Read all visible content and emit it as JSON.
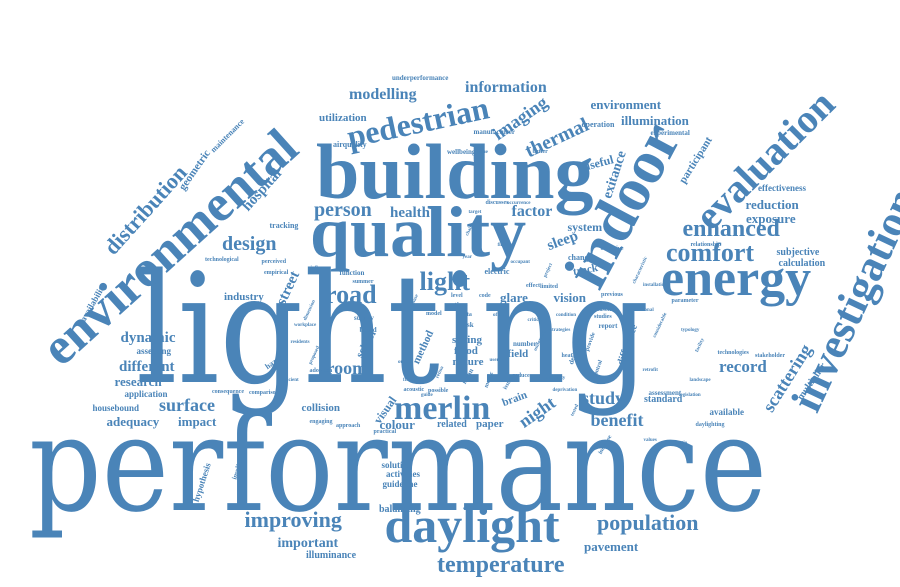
{
  "word_cloud": {
    "color": "#4a84b8",
    "words": [
      {
        "text": "lighting",
        "weight": 100
      },
      {
        "text": "performance",
        "weight": 95
      },
      {
        "text": "building",
        "weight": 70
      },
      {
        "text": "quality",
        "weight": 62
      },
      {
        "text": "environmental",
        "weight": 60
      },
      {
        "text": "indoor",
        "weight": 55
      },
      {
        "text": "daylight",
        "weight": 48
      },
      {
        "text": "energy",
        "weight": 45
      },
      {
        "text": "investigation",
        "weight": 44
      },
      {
        "text": "evaluation",
        "weight": 40
      },
      {
        "text": "pedestrian",
        "weight": 32
      },
      {
        "text": "merlin",
        "weight": 30
      },
      {
        "text": "light",
        "weight": 28
      },
      {
        "text": "road",
        "weight": 26
      },
      {
        "text": "comfort",
        "weight": 26
      },
      {
        "text": "enhanced",
        "weight": 24
      },
      {
        "text": "temperature",
        "weight": 24
      },
      {
        "text": "population",
        "weight": 24
      },
      {
        "text": "improving",
        "weight": 22
      },
      {
        "text": "distribution",
        "weight": 22
      },
      {
        "text": "person",
        "weight": 20
      },
      {
        "text": "design",
        "weight": 20
      },
      {
        "text": "thermal",
        "weight": 20
      },
      {
        "text": "imaging",
        "weight": 18
      },
      {
        "text": "surface",
        "weight": 18
      },
      {
        "text": "room",
        "weight": 18
      },
      {
        "text": "study",
        "weight": 18
      },
      {
        "text": "night",
        "weight": 18
      },
      {
        "text": "scattering",
        "weight": 18
      },
      {
        "text": "benefit",
        "weight": 18
      },
      {
        "text": "record",
        "weight": 17
      },
      {
        "text": "modelling",
        "weight": 16
      },
      {
        "text": "information",
        "weight": 16
      },
      {
        "text": "factor",
        "weight": 16
      },
      {
        "text": "health",
        "weight": 16
      },
      {
        "text": "sleep",
        "weight": 16
      },
      {
        "text": "street",
        "weight": 16
      },
      {
        "text": "hospital",
        "weight": 16
      },
      {
        "text": "different",
        "weight": 15
      },
      {
        "text": "dynamic",
        "weight": 15
      },
      {
        "text": "exitance",
        "weight": 14
      },
      {
        "text": "reduction",
        "weight": 14
      },
      {
        "text": "exposure",
        "weight": 14
      },
      {
        "text": "environment",
        "weight": 14
      },
      {
        "text": "illumination",
        "weight": 14
      },
      {
        "text": "pavement",
        "weight": 14
      },
      {
        "text": "important",
        "weight": 14
      },
      {
        "text": "visual",
        "weight": 13
      },
      {
        "text": "colour",
        "weight": 13
      },
      {
        "text": "glare",
        "weight": 13
      },
      {
        "text": "vision",
        "weight": 13
      },
      {
        "text": "impact",
        "weight": 13
      },
      {
        "text": "adequacy",
        "weight": 13
      },
      {
        "text": "research",
        "weight": 13
      },
      {
        "text": "utilization",
        "weight": 12
      },
      {
        "text": "geometric",
        "weight": 12
      },
      {
        "text": "participant",
        "weight": 12
      },
      {
        "text": "useful",
        "weight": 12
      },
      {
        "text": "system",
        "weight": 12
      },
      {
        "text": "subjective",
        "weight": 11
      },
      {
        "text": "calculation",
        "weight": 11
      },
      {
        "text": "multiplier",
        "weight": 11
      },
      {
        "text": "industry",
        "weight": 11
      },
      {
        "text": "collision",
        "weight": 11
      },
      {
        "text": "paper",
        "weight": 11
      },
      {
        "text": "related",
        "weight": 10
      },
      {
        "text": "balancing",
        "weight": 10
      },
      {
        "text": "illuminance",
        "weight": 10
      },
      {
        "text": "track",
        "weight": 10
      },
      {
        "text": "nature",
        "weight": 10
      },
      {
        "text": "field",
        "weight": 10
      },
      {
        "text": "saving",
        "weight": 10
      },
      {
        "text": "flood",
        "weight": 10
      },
      {
        "text": "method",
        "weight": 10
      },
      {
        "text": "school",
        "weight": 10
      },
      {
        "text": "brain",
        "weight": 10
      },
      {
        "text": "standard",
        "weight": 10
      },
      {
        "text": "difference",
        "weight": 10
      },
      {
        "text": "maintenance",
        "weight": 9
      },
      {
        "text": "availability",
        "weight": 9
      },
      {
        "text": "assessing",
        "weight": 9
      },
      {
        "text": "application",
        "weight": 9
      },
      {
        "text": "housebound",
        "weight": 9
      },
      {
        "text": "hypothesis",
        "weight": 9
      },
      {
        "text": "solution",
        "weight": 9
      },
      {
        "text": "activities",
        "weight": 9
      },
      {
        "text": "guideline",
        "weight": 9
      },
      {
        "text": "effectiveness",
        "weight": 9
      },
      {
        "text": "available",
        "weight": 9
      },
      {
        "text": "assessment",
        "weight": 8
      },
      {
        "text": "airquality",
        "weight": 8
      },
      {
        "text": "operation",
        "weight": 8
      },
      {
        "text": "experimental",
        "weight": 8
      },
      {
        "text": "underperformance",
        "weight": 8
      },
      {
        "text": "manufacturer",
        "weight": 8
      },
      {
        "text": "wellbeing",
        "weight": 8
      },
      {
        "text": "change",
        "weight": 8
      },
      {
        "text": "electric",
        "weight": 8
      },
      {
        "text": "tracking",
        "weight": 8
      },
      {
        "text": "hazard",
        "weight": 8
      },
      {
        "text": "relationship",
        "weight": 7
      },
      {
        "text": "stakeholder",
        "weight": 7
      },
      {
        "text": "parameter",
        "weight": 7
      },
      {
        "text": "technologies",
        "weight": 7
      },
      {
        "text": "technological",
        "weight": 7
      },
      {
        "text": "consequence",
        "weight": 7
      },
      {
        "text": "implication",
        "weight": 7
      },
      {
        "text": "daylighting",
        "weight": 7
      },
      {
        "text": "increase",
        "weight": 7
      },
      {
        "text": "number",
        "weight": 7
      },
      {
        "text": "report",
        "weight": 7
      },
      {
        "text": "supply",
        "weight": 7
      },
      {
        "text": "based",
        "weight": 7
      },
      {
        "text": "time",
        "weight": 7
      },
      {
        "text": "level",
        "weight": 7
      },
      {
        "text": "code",
        "weight": 7
      },
      {
        "text": "effect",
        "weight": 7
      },
      {
        "text": "limited",
        "weight": 7
      },
      {
        "text": "better",
        "weight": 7
      },
      {
        "text": "season",
        "weight": 7
      },
      {
        "text": "studies",
        "weight": 7
      },
      {
        "text": "practical",
        "weight": 7
      },
      {
        "text": "adoption",
        "weight": 7
      },
      {
        "text": "acoustic",
        "weight": 7
      },
      {
        "text": "engaging",
        "weight": 7
      },
      {
        "text": "approach",
        "weight": 7
      },
      {
        "text": "possible",
        "weight": 7
      },
      {
        "text": "summer",
        "weight": 7
      },
      {
        "text": "function",
        "weight": 7
      },
      {
        "text": "empirical",
        "weight": 7
      },
      {
        "text": "perceived",
        "weight": 7
      },
      {
        "text": "comparison",
        "weight": 7
      },
      {
        "text": "objective",
        "weight": 7
      },
      {
        "text": "previous",
        "weight": 7
      },
      {
        "text": "provide",
        "weight": 7
      },
      {
        "text": "control",
        "weight": 7
      },
      {
        "text": "designer",
        "weight": 7
      },
      {
        "text": "reduce",
        "weight": 7
      },
      {
        "text": "metric",
        "weight": 7
      },
      {
        "text": "mean",
        "weight": 7
      },
      {
        "text": "risk",
        "weight": 7
      },
      {
        "text": "data",
        "weight": 7
      },
      {
        "text": "model",
        "weight": 7
      },
      {
        "text": "issue",
        "weight": 7
      },
      {
        "text": "heat",
        "weight": 6
      },
      {
        "text": "year",
        "weight": 6
      },
      {
        "text": "value",
        "weight": 6
      },
      {
        "text": "target",
        "weight": 6
      },
      {
        "text": "guide",
        "weight": 6
      },
      {
        "text": "discusses",
        "weight": 6
      },
      {
        "text": "occurrence",
        "weight": 6
      },
      {
        "text": "influence",
        "weight": 6
      },
      {
        "text": "chain",
        "weight": 6
      },
      {
        "text": "finding",
        "weight": 6
      },
      {
        "text": "occupant",
        "weight": 6
      },
      {
        "text": "project",
        "weight": 6
      },
      {
        "text": "condition",
        "weight": 6
      },
      {
        "text": "strategies",
        "weight": 6
      },
      {
        "text": "uniformity",
        "weight": 6
      },
      {
        "text": "reliability",
        "weight": 6
      },
      {
        "text": "deprivation",
        "weight": 6
      },
      {
        "text": "characteristic",
        "weight": 6
      },
      {
        "text": "installation",
        "weight": 6
      },
      {
        "text": "conventional",
        "weight": 6
      },
      {
        "text": "considerable",
        "weight": 6
      },
      {
        "text": "retrofit",
        "weight": 6
      },
      {
        "text": "typology",
        "weight": 6
      },
      {
        "text": "facility",
        "weight": 6
      },
      {
        "text": "landscape",
        "weight": 6
      },
      {
        "text": "legislation",
        "weight": 6
      },
      {
        "text": "dimension",
        "weight": 6
      },
      {
        "text": "workplace",
        "weight": 6
      },
      {
        "text": "residents",
        "weight": 6
      },
      {
        "text": "proposed",
        "weight": 6
      },
      {
        "text": "efficient",
        "weight": 6
      },
      {
        "text": "fixture",
        "weight": 6
      },
      {
        "text": "retina",
        "weight": 6
      },
      {
        "text": "users",
        "weight": 6
      },
      {
        "text": "offices",
        "weight": 6
      },
      {
        "text": "phase",
        "weight": 6
      },
      {
        "text": "output",
        "weight": 6
      },
      {
        "text": "critical",
        "weight": 6
      },
      {
        "text": "tested",
        "weight": 6
      },
      {
        "text": "values",
        "weight": 6
      },
      {
        "text": "ratio",
        "weight": 6
      }
    ]
  }
}
